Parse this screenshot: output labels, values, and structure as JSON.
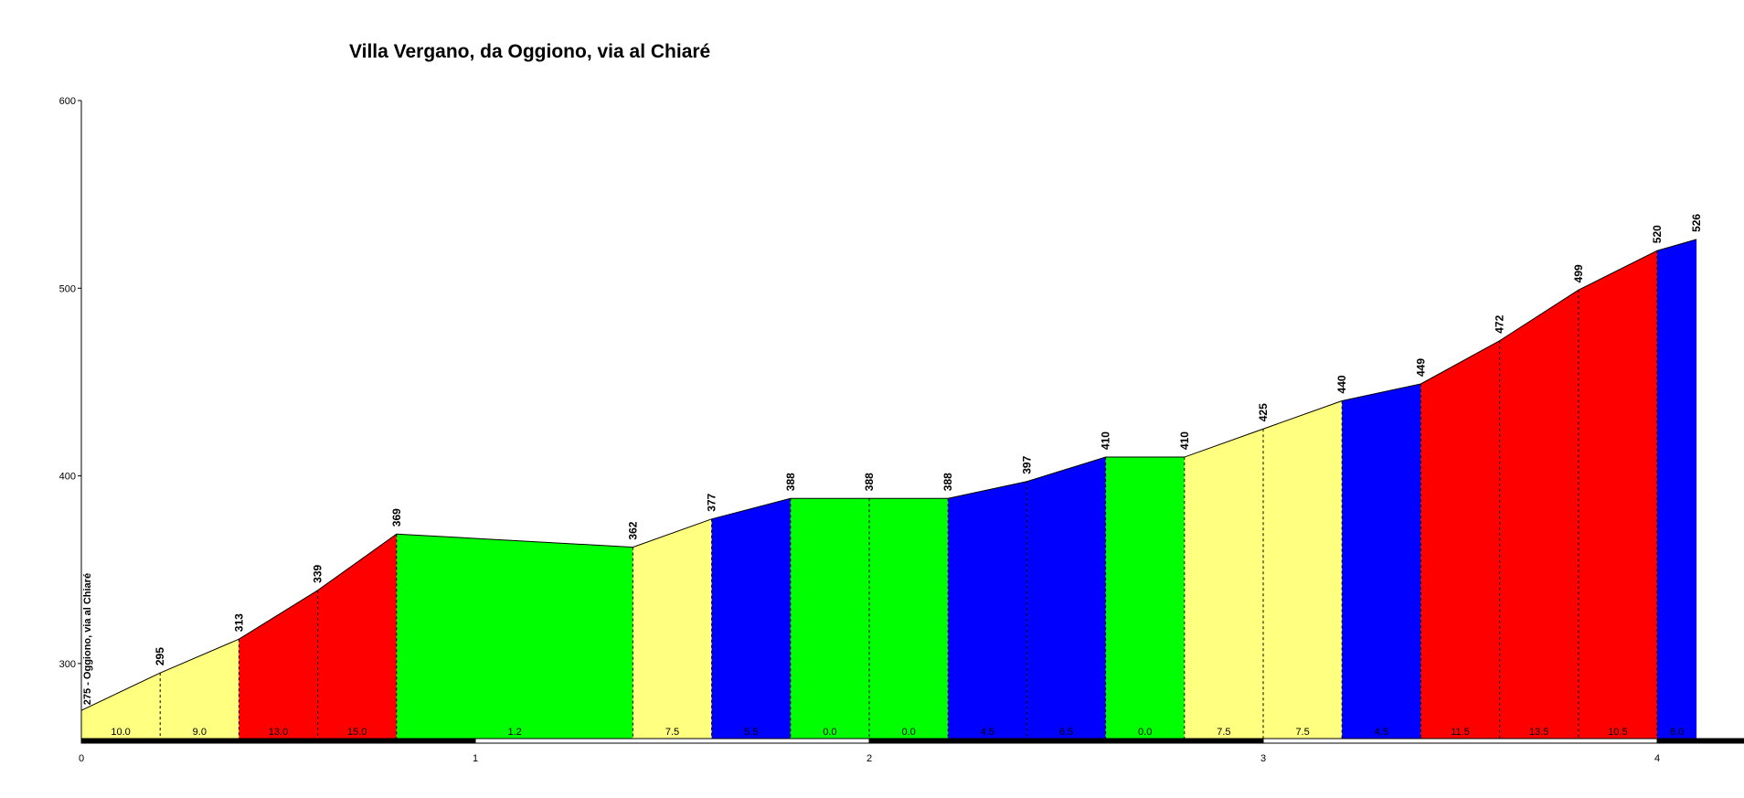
{
  "chart_data": {
    "type": "area",
    "title": "Villa Vergano, da Oggiono, via al Chiaré",
    "start_label": "275 - Oggiono, via al Chiaré",
    "xlabel": "",
    "ylabel": "",
    "xlim": [
      0,
      4.1
    ],
    "ylim": [
      260,
      600
    ],
    "x_ticks": [
      "0",
      "1",
      "2",
      "3",
      "4"
    ],
    "y_ticks": [
      "300",
      "400",
      "500",
      "600"
    ],
    "points": [
      {
        "x": 0.0,
        "y": 275
      },
      {
        "x": 0.2,
        "y": 295
      },
      {
        "x": 0.4,
        "y": 313
      },
      {
        "x": 0.6,
        "y": 339
      },
      {
        "x": 0.8,
        "y": 369
      },
      {
        "x": 1.4,
        "y": 362
      },
      {
        "x": 1.6,
        "y": 377
      },
      {
        "x": 1.8,
        "y": 388
      },
      {
        "x": 2.0,
        "y": 388
      },
      {
        "x": 2.2,
        "y": 388
      },
      {
        "x": 2.4,
        "y": 397
      },
      {
        "x": 2.6,
        "y": 410
      },
      {
        "x": 2.8,
        "y": 410
      },
      {
        "x": 3.0,
        "y": 425
      },
      {
        "x": 3.2,
        "y": 440
      },
      {
        "x": 3.4,
        "y": 449
      },
      {
        "x": 3.6,
        "y": 472
      },
      {
        "x": 3.8,
        "y": 499
      },
      {
        "x": 4.0,
        "y": 520
      },
      {
        "x": 4.1,
        "y": 526
      }
    ],
    "elevation_labels": [
      "295",
      "313",
      "339",
      "369",
      "362",
      "377",
      "388",
      "388",
      "388",
      "397",
      "410",
      "410",
      "425",
      "440",
      "449",
      "472",
      "499",
      "520",
      "526"
    ],
    "segments": [
      {
        "gradient": "10.0",
        "color": "#ffff80"
      },
      {
        "gradient": "9.0",
        "color": "#ffff80"
      },
      {
        "gradient": "13.0",
        "color": "#ff0000"
      },
      {
        "gradient": "15.0",
        "color": "#ff0000"
      },
      {
        "gradient": "1.2",
        "color": "#00ff00"
      },
      {
        "gradient": "7.5",
        "color": "#ffff80"
      },
      {
        "gradient": "5.5",
        "color": "#0000ff"
      },
      {
        "gradient": "0.0",
        "color": "#00ff00"
      },
      {
        "gradient": "0.0",
        "color": "#00ff00"
      },
      {
        "gradient": "4.5",
        "color": "#0000ff"
      },
      {
        "gradient": "6.5",
        "color": "#0000ff"
      },
      {
        "gradient": "0.0",
        "color": "#00ff00"
      },
      {
        "gradient": "7.5",
        "color": "#ffff80"
      },
      {
        "gradient": "7.5",
        "color": "#ffff80"
      },
      {
        "gradient": "4.5",
        "color": "#0000ff"
      },
      {
        "gradient": "11.5",
        "color": "#ff0000"
      },
      {
        "gradient": "13.5",
        "color": "#ff0000"
      },
      {
        "gradient": "10.5",
        "color": "#ff0000"
      },
      {
        "gradient": "6.0",
        "color": "#0000ff"
      }
    ],
    "colors": {
      "easy": "#ffff80",
      "moderate": "#0000ff",
      "hard": "#ff0000",
      "flat": "#00ff00"
    }
  }
}
